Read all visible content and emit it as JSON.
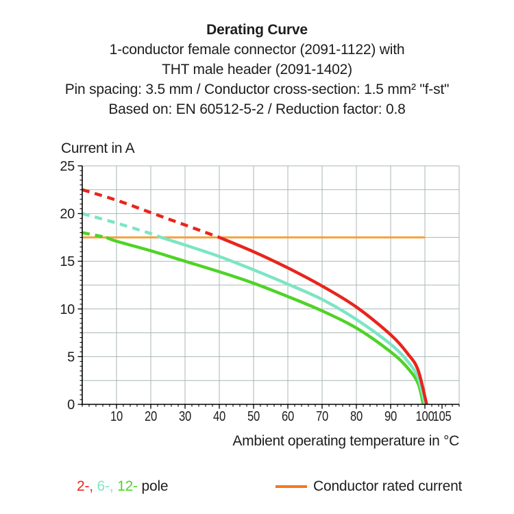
{
  "header": {
    "title": "Derating Curve",
    "subtitle_lines": [
      "1-conductor female connector (2091-1122) with",
      "THT male header (2091-1402)",
      "Pin spacing: 3.5 mm / Conductor cross-section: 1.5 mm² \"f-st\"",
      "Based on: EN 60512-5-2 / Reduction factor: 0.8"
    ]
  },
  "chart_data": {
    "type": "line",
    "title": "Derating Curve",
    "ylabel": "Current in A",
    "xlabel": "Ambient operating temperature in °C",
    "xlim": [
      0,
      110
    ],
    "ylim": [
      0,
      25
    ],
    "x_ticks": [
      10,
      20,
      30,
      40,
      50,
      60,
      70,
      80,
      90,
      100,
      105
    ],
    "y_ticks": [
      0,
      5,
      10,
      15,
      20,
      25
    ],
    "x_grid_step": 10,
    "y_grid_step": 2.5,
    "x_minor_step": 2,
    "y_minor_step": 0.5,
    "grid": true,
    "grid_color": "#a9b5b5",
    "axis_color": "#000000",
    "series": [
      {
        "name": "2-pole",
        "color": "#e8251c",
        "style": "dashed-then-solid",
        "dash_until": 40,
        "x": [
          0,
          10,
          20,
          30,
          40,
          50,
          60,
          70,
          80,
          90,
          95,
          98,
          100.5
        ],
        "y": [
          22.5,
          21.4,
          20.1,
          18.8,
          17.5,
          16.0,
          14.3,
          12.4,
          10.2,
          7.3,
          5.3,
          3.6,
          0
        ]
      },
      {
        "name": "6-pole",
        "color": "#7de5c4",
        "style": "dashed-then-solid",
        "dash_until": 23,
        "x": [
          0,
          10,
          20,
          23,
          30,
          40,
          50,
          60,
          70,
          80,
          90,
          95,
          98,
          100
        ],
        "y": [
          20.0,
          19.0,
          17.9,
          17.5,
          16.7,
          15.5,
          14.1,
          12.6,
          11.0,
          8.9,
          6.3,
          4.5,
          2.8,
          0
        ]
      },
      {
        "name": "12-pole",
        "color": "#4fd327",
        "style": "dashed-then-solid",
        "dash_until": 7,
        "x": [
          0,
          7,
          10,
          20,
          30,
          40,
          50,
          60,
          70,
          80,
          90,
          95,
          98,
          99.5
        ],
        "y": [
          18.0,
          17.5,
          17.1,
          16.1,
          15.0,
          13.9,
          12.7,
          11.3,
          9.8,
          8.0,
          5.5,
          3.8,
          2.2,
          0
        ]
      }
    ],
    "reference_line": {
      "label": "Conductor rated current",
      "value": 17.5,
      "x_start": 0,
      "x_end": 100,
      "color": "#f7a13c"
    },
    "legend_position": "bottom"
  },
  "legend": {
    "pole_parts": [
      {
        "text": "2-, ",
        "color": "#e8251c"
      },
      {
        "text": "6-, ",
        "color": "#7de5c4"
      },
      {
        "text": "12- ",
        "color": "#4fd327"
      },
      {
        "text": "pole",
        "color": "#1d1d1d"
      }
    ],
    "swatch_color": "#f2791f"
  }
}
